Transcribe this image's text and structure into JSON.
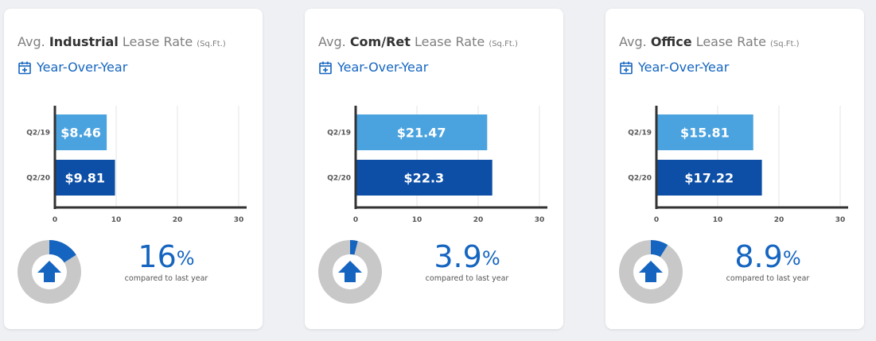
{
  "cards": [
    {
      "title_prefix": "Avg.",
      "metric": "Industrial",
      "title_suffix": "Lease Rate",
      "unit": "(Sq.Ft.)",
      "yoy_label": "Year-Over-Year",
      "change_value": "16",
      "change_unit": "%",
      "change_caption": "compared to last year",
      "change_fraction": 0.16
    },
    {
      "title_prefix": "Avg.",
      "metric": "Com/Ret",
      "title_suffix": "Lease Rate",
      "unit": "(Sq.Ft.)",
      "yoy_label": "Year-Over-Year",
      "change_value": "3.9",
      "change_unit": "%",
      "change_caption": "compared to last year",
      "change_fraction": 0.039
    },
    {
      "title_prefix": "Avg.",
      "metric": "Office",
      "title_suffix": "Lease Rate",
      "unit": "(Sq.Ft.)",
      "yoy_label": "Year-Over-Year",
      "change_value": "8.9",
      "change_unit": "%",
      "change_caption": "compared to last year",
      "change_fraction": 0.089
    }
  ],
  "colors": {
    "accent": "#1565c0",
    "bar_q2_19": "#4aa3df",
    "bar_q2_20": "#0d4fa6",
    "donut_track": "#c8c8c8",
    "donut_fill": "#1565c0",
    "axis": "#333333",
    "grid": "#e6e6e6"
  },
  "icons": {
    "calendar": "calendar-plus-icon",
    "arrow": "arrow-up-icon"
  },
  "chart_data": [
    {
      "type": "bar",
      "orientation": "horizontal",
      "categories": [
        "Q2/19",
        "Q2/20"
      ],
      "values": [
        8.46,
        9.81
      ],
      "labels": [
        "$8.46",
        "$9.81"
      ],
      "xlim": [
        0,
        30
      ],
      "xticks": [
        "0",
        "10",
        "20",
        "30"
      ],
      "grid": true
    },
    {
      "type": "bar",
      "orientation": "horizontal",
      "categories": [
        "Q2/19",
        "Q2/20"
      ],
      "values": [
        21.47,
        22.3
      ],
      "labels": [
        "$21.47",
        "$22.3"
      ],
      "xlim": [
        0,
        30
      ],
      "xticks": [
        "0",
        "10",
        "20",
        "30"
      ],
      "grid": true
    },
    {
      "type": "bar",
      "orientation": "horizontal",
      "categories": [
        "Q2/19",
        "Q2/20"
      ],
      "values": [
        15.81,
        17.22
      ],
      "labels": [
        "$15.81",
        "$17.22"
      ],
      "xlim": [
        0,
        30
      ],
      "xticks": [
        "0",
        "10",
        "20",
        "30"
      ],
      "grid": true
    }
  ]
}
